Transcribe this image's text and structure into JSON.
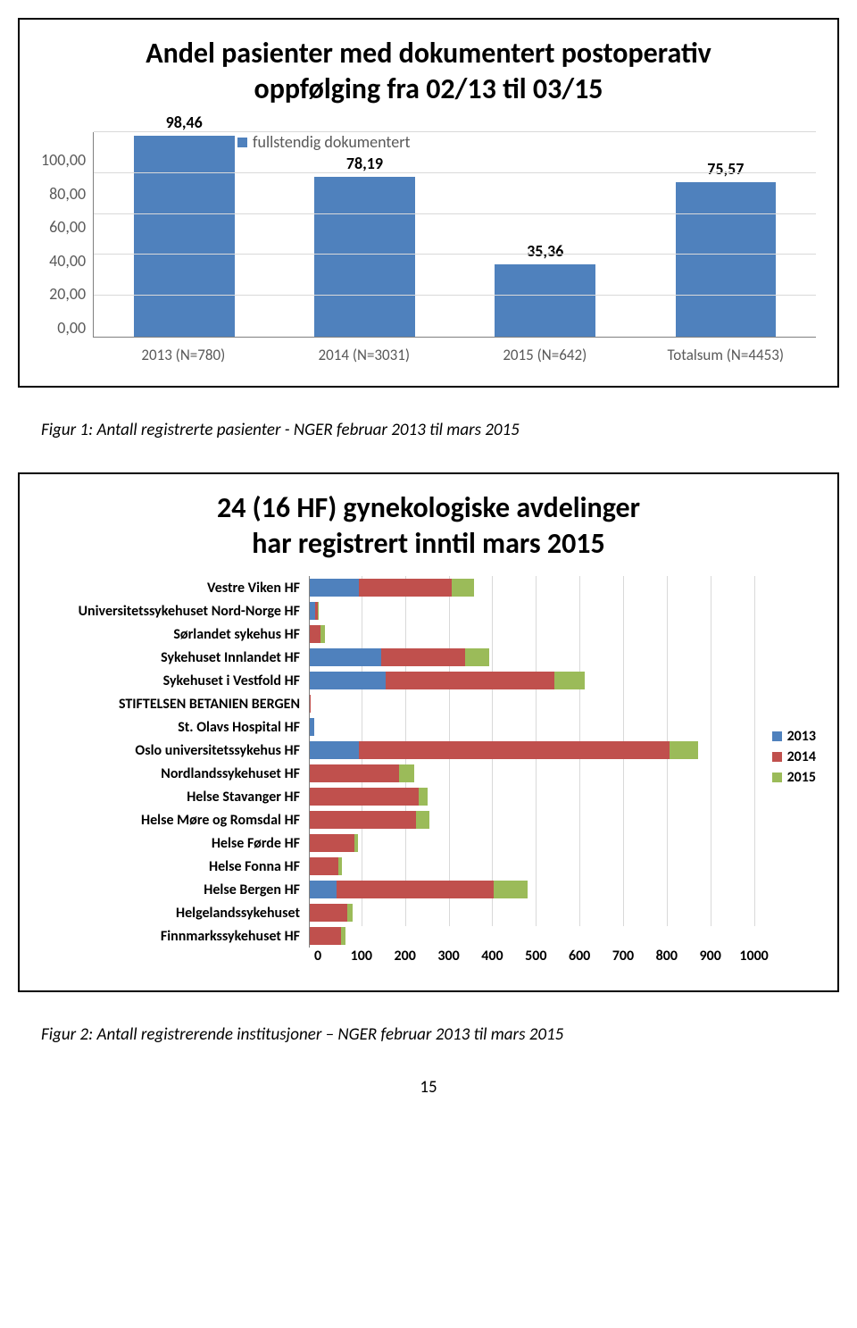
{
  "panel1": {
    "title_line1": "Andel pasienter med dokumentert postoperativ",
    "title_line2": "oppfølging fra 02/13 til 03/15",
    "legend_label": "fullstendig dokumentert",
    "legend_color": "#4f81bd",
    "chart": {
      "type": "bar",
      "bar_color": "#4f81bd",
      "grid_color": "#d9d9d9",
      "axis_color": "#808080",
      "label_color": "#595959",
      "value_label_color": "#000000",
      "ylim": [
        0,
        100
      ],
      "yticks": [
        "100,00",
        "80,00",
        "60,00",
        "40,00",
        "20,00",
        "0,00"
      ],
      "categories": [
        "2013 (N=780)",
        "2014 (N=3031)",
        "2015 (N=642)",
        "Totalsum (N=4453)"
      ],
      "value_labels": [
        "98,46",
        "78,19",
        "35,36",
        "75,57"
      ],
      "values": [
        98.46,
        78.19,
        35.36,
        75.57
      ]
    }
  },
  "caption1": "Figur 1: Antall registrerte pasienter - NGER februar 2013 til mars 2015",
  "panel2": {
    "title_line1": "24 (16 HF) gynekologiske avdelinger",
    "title_line2": "har registrert inntil mars 2015",
    "chart": {
      "type": "stacked-hbar",
      "grid_color": "#d9d9d9",
      "axis_color": "#808080",
      "xlim": [
        0,
        1000
      ],
      "xtick_step": 100,
      "xticks": [
        "0",
        "100",
        "200",
        "300",
        "400",
        "500",
        "600",
        "700",
        "800",
        "900",
        "1000"
      ],
      "series": [
        {
          "name": "2013",
          "color": "#4f81bd"
        },
        {
          "name": "2014",
          "color": "#c0504d"
        },
        {
          "name": "2015",
          "color": "#9bbb59"
        }
      ],
      "rows": [
        {
          "label": "Vestre Viken HF",
          "v": [
            110,
            210,
            50
          ]
        },
        {
          "label": "Universitetssykehuset Nord-Norge HF",
          "v": [
            12,
            6,
            2
          ]
        },
        {
          "label": "Sørlandet sykehus HF",
          "v": [
            0,
            25,
            10
          ]
        },
        {
          "label": "Sykehuset Innlandet HF",
          "v": [
            160,
            190,
            55
          ]
        },
        {
          "label": "Sykehuset i Vestfold HF",
          "v": [
            170,
            380,
            70
          ]
        },
        {
          "label": "STIFTELSEN BETANIEN BERGEN",
          "v": [
            0,
            2,
            0
          ]
        },
        {
          "label": "St. Olavs Hospital HF",
          "v": [
            10,
            0,
            0
          ]
        },
        {
          "label": "Oslo universitetssykehus HF",
          "v": [
            110,
            700,
            65
          ]
        },
        {
          "label": "Nordlandssykehuset HF",
          "v": [
            0,
            200,
            35
          ]
        },
        {
          "label": "Helse Stavanger HF",
          "v": [
            0,
            245,
            20
          ]
        },
        {
          "label": "Helse Møre og Romsdal HF",
          "v": [
            0,
            240,
            30
          ]
        },
        {
          "label": "Helse Førde HF",
          "v": [
            0,
            100,
            8
          ]
        },
        {
          "label": "Helse Fonna HF",
          "v": [
            0,
            65,
            8
          ]
        },
        {
          "label": "Helse Bergen HF",
          "v": [
            60,
            355,
            75
          ]
        },
        {
          "label": "Helgelandssykehuset",
          "v": [
            0,
            85,
            12
          ]
        },
        {
          "label": "Finnmarkssykehuset HF",
          "v": [
            0,
            70,
            10
          ]
        }
      ]
    }
  },
  "caption2": "Figur 2: Antall registrerende institusjoner – NGER februar 2013 til mars 2015",
  "page_number": "15"
}
